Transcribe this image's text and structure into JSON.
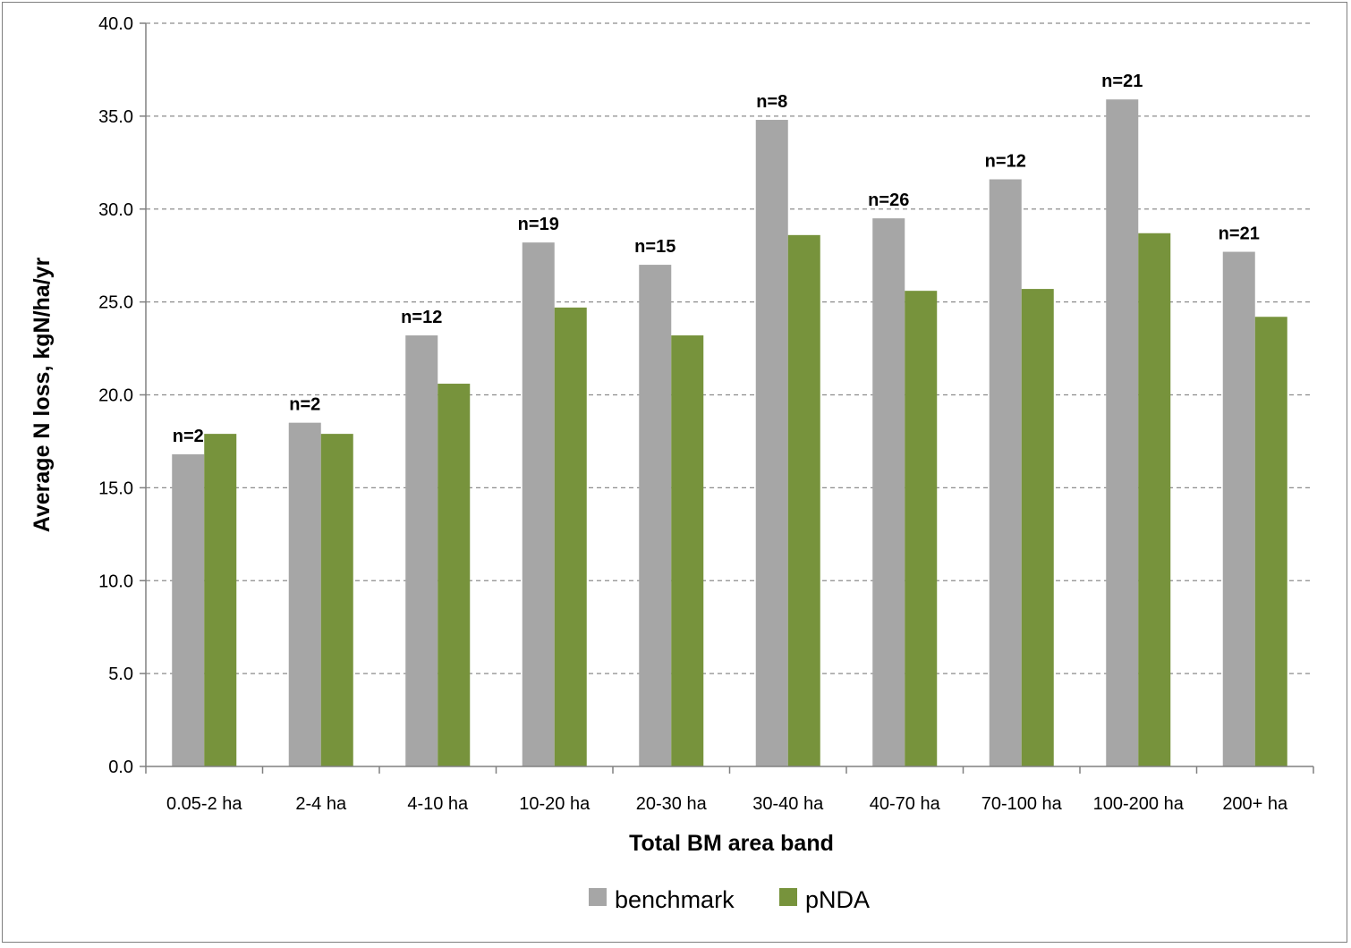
{
  "chart_data": {
    "type": "bar",
    "title": "",
    "xlabel": "Total BM area band",
    "ylabel": "Average N loss, kgN/ha/yr",
    "ylim": [
      0,
      40
    ],
    "yticks": [
      "0.0",
      "5.0",
      "10.0",
      "15.0",
      "20.0",
      "25.0",
      "30.0",
      "35.0",
      "40.0"
    ],
    "grid": "horizontal dashed",
    "legend_position": "bottom",
    "categories": [
      "0.05-2 ha",
      "2-4 ha",
      "4-10 ha",
      "10-20 ha",
      "20-30 ha",
      "30-40 ha",
      "40-70 ha",
      "70-100 ha",
      "100-200 ha",
      "200+ ha"
    ],
    "annotations": [
      "n=2",
      "n=2",
      "n=12",
      "n=19",
      "n=15",
      "n=8",
      "n=26",
      "n=12",
      "n=21",
      "n=21"
    ],
    "series": [
      {
        "name": "benchmark",
        "color": "#a6a6a6",
        "values": [
          16.8,
          18.5,
          23.2,
          28.2,
          27.0,
          34.8,
          29.5,
          31.6,
          35.9,
          27.7
        ]
      },
      {
        "name": "pNDA",
        "color": "#77933c",
        "values": [
          17.9,
          17.9,
          20.6,
          24.7,
          23.2,
          28.6,
          25.6,
          25.7,
          28.7,
          24.2
        ]
      }
    ]
  }
}
